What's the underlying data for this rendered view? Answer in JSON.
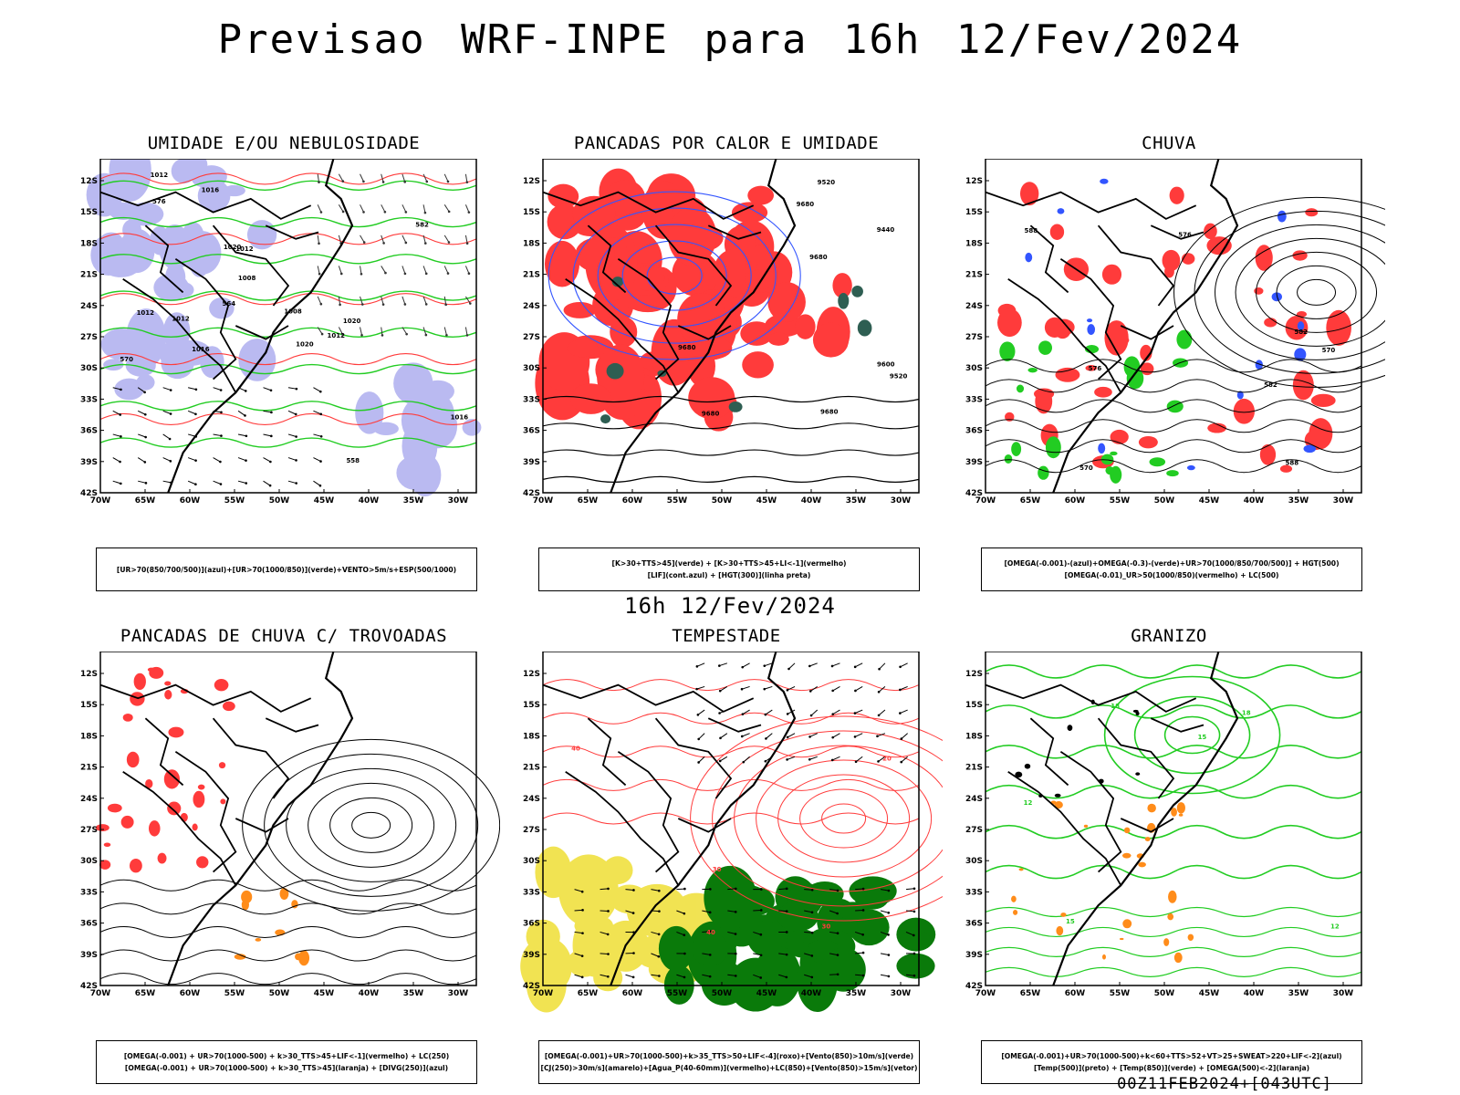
{
  "title": "Previsao WRF-INPE  para 16h 12/Fev/2024",
  "subtitle": "16h 12/Fev/2024",
  "footer": "00Z11FEB2024+[043UTC]",
  "axes": {
    "lat_labels": [
      "12S",
      "15S",
      "18S",
      "21S",
      "24S",
      "27S",
      "30S",
      "33S",
      "36S",
      "39S",
      "42S"
    ],
    "lon_labels": [
      "70W",
      "65W",
      "60W",
      "55W",
      "50W",
      "45W",
      "40W",
      "35W",
      "30W"
    ]
  },
  "colors": {
    "red": "#ff3b3b",
    "green": "#22cc22",
    "blue": "#3355ff",
    "lavender": "#b3b3f0",
    "orange": "#ff8c1a",
    "yellow": "#f0e040",
    "dark_green": "#2e5e52",
    "darkgreen_fill": "#0a7a0a"
  },
  "panels": [
    {
      "title": "UMIDADE E/OU NEBULOSIDADE",
      "legend": [
        "[UR>70(850/700/500)](azul)+[UR>70(1000/850)](verde)+VENTO>5m/s+ESP(500/1000)"
      ],
      "contour_labels": [
        "1012",
        "1016",
        "1008",
        "1016",
        "1012",
        "1012",
        "1012",
        "1020",
        "1020",
        "1016",
        "1020",
        "1012",
        "1008",
        "570",
        "576",
        "564",
        "558",
        "582"
      ]
    },
    {
      "title": "PANCADAS POR CALOR E UMIDADE",
      "legend": [
        "[K>30+TTS>45](verde)  +  [K>30+TTS>45+LI<-1](vermelho)",
        "[LIF](cont.azul)  +  [HGT(300)](linha preta)"
      ],
      "contour_labels": [
        "9680",
        "9680",
        "9680",
        "9680",
        "9600",
        "9520",
        "9440",
        "9520",
        "9680"
      ]
    },
    {
      "title": "CHUVA",
      "legend": [
        "[OMEGA(-0.001)-(azul)+OMEGA(-0.3)-(verde)+UR>70(1000/850/700/500)]  +  HGT(500)",
        "[OMEGA(-0.01)_UR>50(1000/850)(vermelho)  +  LC(500)"
      ],
      "contour_labels": [
        "588",
        "582",
        "576",
        "570",
        "582",
        "588",
        "576",
        "570"
      ]
    },
    {
      "title": "PANCADAS DE CHUVA C/ TROVOADAS",
      "legend": [
        "[OMEGA(-0.001) + UR>70(1000-500) + k>30_TTS>45+LIF<-1](vermelho) + LC(250)",
        "[OMEGA(-0.001) + UR>70(1000-500) + k>30_TTS>45](laranja) + [DIVG(250)](azul)"
      ],
      "contour_labels": []
    },
    {
      "title": "TEMPESTADE",
      "legend": [
        "[OMEGA(-0.001)+UR>70(1000-500)+k>35_TTS>50+LIF<-4](roxo)+[Vento(850)>10m/s](verde)",
        "[CJ(250)>30m/s](amarelo)+[Agua_P(40-60mm)](vermelho)+LC(850)+[Vento(850)>15m/s](vetor)"
      ],
      "contour_labels": [
        "40",
        "40",
        "30",
        "20",
        "30"
      ]
    },
    {
      "title": "GRANIZO",
      "legend": [
        "[OMEGA(-0.001)+UR>70(1000-500)+k<60+TTS>52+VT>25+SWEAT>220+LIF<-2](azul)",
        "[Temp(500)](preto) + [Temp(850)](verde) + [OMEGA(500)<-2](laranja)"
      ],
      "contour_labels": [
        "12",
        "15",
        "18",
        "12",
        "15",
        "18"
      ]
    }
  ]
}
